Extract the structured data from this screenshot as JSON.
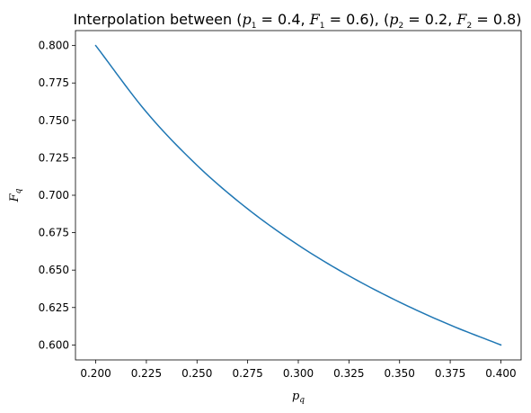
{
  "chart_data": {
    "type": "line",
    "title": {
      "prefix": "Interpolation between (",
      "p1_sym": "p",
      "p1_sub": "1",
      "p1_val": " = 0.4, ",
      "F1_sym": "F",
      "F1_sub": "1",
      "F1_val": " = 0.6), (",
      "p2_sym": "p",
      "p2_sub": "2",
      "p2_val": " = 0.2, ",
      "F2_sym": "F",
      "F2_sub": "2",
      "F2_val": " = 0.8)"
    },
    "xlabel": {
      "sym": "p",
      "sub": "q"
    },
    "ylabel": {
      "sym": "F",
      "sub": "q"
    },
    "xlim": [
      0.19,
      0.41
    ],
    "ylim": [
      0.59,
      0.81
    ],
    "xticks": [
      0.2,
      0.225,
      0.25,
      0.275,
      0.3,
      0.325,
      0.35,
      0.375,
      0.4
    ],
    "xtick_labels": [
      "0.200",
      "0.225",
      "0.250",
      "0.275",
      "0.300",
      "0.325",
      "0.350",
      "0.375",
      "0.400"
    ],
    "yticks": [
      0.6,
      0.625,
      0.65,
      0.675,
      0.7,
      0.725,
      0.75,
      0.775,
      0.8
    ],
    "ytick_labels": [
      "0.600",
      "0.625",
      "0.650",
      "0.675",
      "0.700",
      "0.725",
      "0.750",
      "0.775",
      "0.800"
    ],
    "grid": false,
    "series": [
      {
        "color": "#1f77b4",
        "x": [
          0.2,
          0.225,
          0.25,
          0.275,
          0.3,
          0.325,
          0.35,
          0.375,
          0.4
        ],
        "y": [
          0.8,
          0.7556,
          0.72,
          0.6909,
          0.6667,
          0.6462,
          0.6286,
          0.6133,
          0.6
        ]
      }
    ]
  }
}
